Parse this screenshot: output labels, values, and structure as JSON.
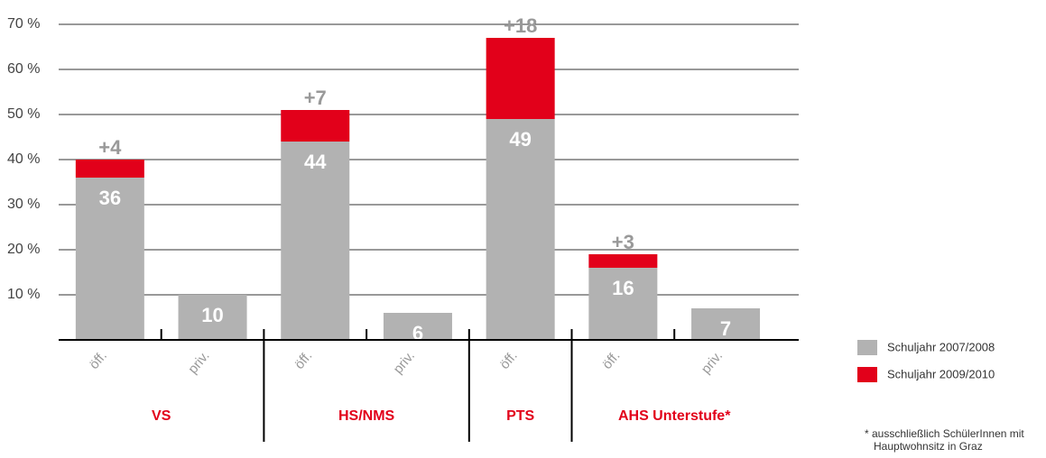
{
  "chart_data": {
    "type": "bar",
    "categories": [
      "öff.",
      "priv.",
      "öff.",
      "priv.",
      "öff.",
      "öff.",
      "priv."
    ],
    "groups": [
      {
        "name": "VS",
        "count": 2
      },
      {
        "name": "HS/NMS",
        "count": 2
      },
      {
        "name": "PTS",
        "count": 1
      },
      {
        "name": "AHS Unterstufe*",
        "count": 2
      }
    ],
    "series": [
      {
        "name": "Schuljahr 2007/2008",
        "color": "#b2b2b2",
        "values": [
          36,
          10,
          44,
          6,
          49,
          16,
          7
        ]
      },
      {
        "name": "Schuljahr 2009/2010",
        "color": "#e2001a",
        "values": [
          4,
          null,
          7,
          null,
          18,
          3,
          null
        ],
        "value_labels": [
          "+4",
          null,
          "+7",
          null,
          "+18",
          "+3",
          null
        ]
      }
    ],
    "stacked": true,
    "ylim": [
      0,
      70
    ],
    "yticks": [
      {
        "value": 10,
        "label": "10 %"
      },
      {
        "value": 20,
        "label": "20 %"
      },
      {
        "value": 30,
        "label": "30 %"
      },
      {
        "value": 40,
        "label": "40 %"
      },
      {
        "value": 50,
        "label": "50 %"
      },
      {
        "value": 60,
        "label": "60 %"
      },
      {
        "value": 70,
        "label": "70 %"
      }
    ],
    "grid": true,
    "footnote": "* ausschließlich SchülerInnen mit Hauptwohnsitz in Graz"
  }
}
